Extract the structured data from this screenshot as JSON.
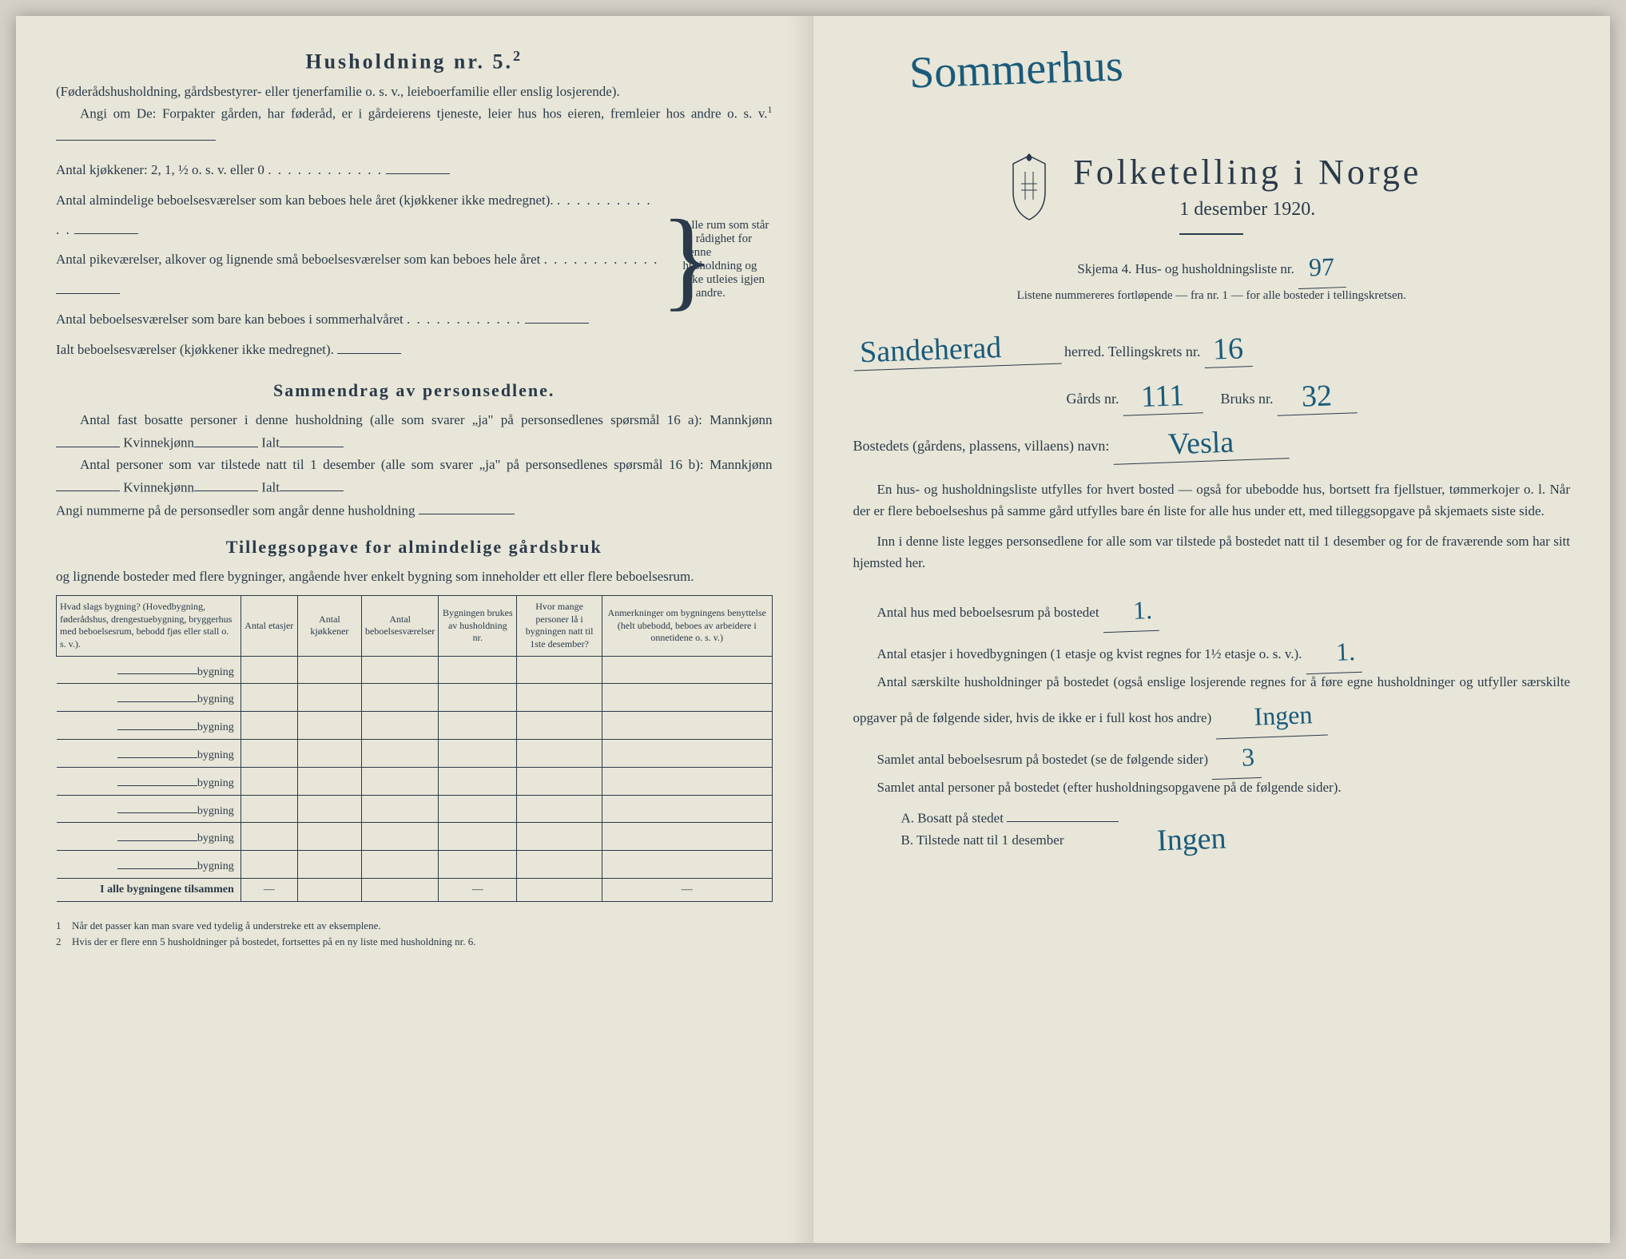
{
  "left": {
    "title": "Husholdning nr. 5.",
    "title_super": "2",
    "intro1": "(Føderådshusholdning, gårdsbestyrer- eller tjenerfamilie o. s. v., leieboerfamilie eller enslig losjerende).",
    "intro2": "Angi om De: Forpakter gården, har føderåd, er i gårdeierens tjeneste, leier hus hos eieren, fremleier hos andre o. s. v.",
    "intro2_super": "1",
    "kitchens_label": "Antal kjøkkener: 2, 1, ½ o. s. v. eller 0",
    "rooms_label1": "Antal almindelige beboelsesværelser som kan beboes hele året (kjøkkener ikke medregnet).",
    "rooms_label2": "Antal pikeværelser, alkover og lignende små beboelsesværelser som kan beboes hele året",
    "rooms_label3": "Antal beboelsesværelser som bare kan beboes i sommerhalvåret",
    "total_label": "Ialt beboelsesværelser (kjøkkener ikke medregnet).",
    "brace_text": "Alle rum som står til rådighet for denne husholdning og ikke utleies igjen til andre.",
    "sammendrag_title": "Sammendrag av personsedlene.",
    "sammendrag1": "Antal fast bosatte personer i denne husholdning (alle som svarer „ja\" på personsedlenes spørsmål 16 a): Mannkjønn",
    "kvinne": "Kvinnekjønn",
    "ialt": "Ialt",
    "sammendrag2": "Antal personer som var tilstede natt til 1 desember (alle som svarer „ja\" på personsedlenes spørsmål 16 b): Mannkjønn",
    "angi": "Angi nummerne på de personsedler som angår denne husholdning",
    "tillegg_title": "Tilleggsopgave for almindelige gårdsbruk",
    "tillegg_sub": "og lignende bosteder med flere bygninger, angående hver enkelt bygning som inneholder ett eller flere beboelsesrum.",
    "table": {
      "col1": "Hvad slags bygning?\n(Hovedbygning, føderådshus, drengestuebygning, bryggerhus med beboelsesrum, bebodd fjøs eller stall o. s. v.).",
      "col2": "Antal etasjer",
      "col3": "Antal kjøkkener",
      "col4": "Antal beboelsesværelser",
      "col5": "Bygningen brukes av husholdning nr.",
      "col6": "Hvor mange personer lå i bygningen natt til 1ste desember?",
      "col7": "Anmerkninger om bygningens benyttelse (helt ubebodd, beboes av arbeidere i onnetidene o. s. v.)",
      "row_label": "bygning",
      "row_count": 8,
      "footer": "I alle bygningene tilsammen"
    },
    "footnote1": "Når det passer kan man svare ved tydelig å understreke ett av eksemplene.",
    "footnote2": "Hvis der er flere enn 5 husholdninger på bostedet, fortsettes på en ny liste med husholdning nr. 6."
  },
  "right": {
    "handwritten_top": "Sommerhus",
    "main_title": "Folketelling i Norge",
    "subtitle": "1 desember 1920.",
    "skjema": "Skjema 4.  Hus- og husholdningsliste nr.",
    "skjema_nr": "97",
    "listene": "Listene nummereres fortløpende — fra nr. 1 — for alle bosteder i tellingskretsen.",
    "herred_hw": "Sandeherad",
    "herred_label": "herred.  Tellingskrets nr.",
    "krets_nr": "16",
    "gards_label": "Gårds nr.",
    "gards_nr": "111",
    "bruks_label": "Bruks nr.",
    "bruks_nr": "32",
    "bosted_label": "Bostedets (gårdens, plassens, villaens) navn:",
    "bosted_hw": "Vesla",
    "para1": "En hus- og husholdningsliste utfylles for hvert bosted — også for ubebodde hus, bortsett fra fjellstuer, tømmerkojer o. l.  Når der er flere beboelseshus på samme gård utfylles bare én liste for alle hus under ett, med tilleggsopgave på skjemaets siste side.",
    "para2": "Inn i denne liste legges personsedlene for alle som var tilstede på bostedet natt til 1 desember og for de fraværende som har sitt hjemsted her.",
    "antal_hus": "Antal hus med beboelsesrum på bostedet",
    "antal_hus_hw": "1.",
    "antal_etasjer": "Antal etasjer i hovedbygningen (1 etasje og kvist regnes for 1½ etasje o. s. v.).",
    "antal_etasjer_hw": "1.",
    "saerskilte": "Antal særskilte husholdninger på bostedet (også enslige losjerende regnes for å føre egne husholdninger og utfyller særskilte opgaver på de følgende sider, hvis de ikke er i full kost hos andre)",
    "saerskilte_hw": "Ingen",
    "samlet_rum": "Samlet antal beboelsesrum på bostedet (se de følgende sider)",
    "samlet_rum_hw": "3",
    "samlet_pers": "Samlet antal personer på bostedet (efter husholdningsopgavene på de følgende sider).",
    "a_label": "A.  Bosatt på stedet",
    "b_label": "B.  Tilstede natt til 1 desember",
    "ab_hw": "Ingen"
  },
  "colors": {
    "paper": "#e8e6d8",
    "ink": "#2a3a4a",
    "handwriting": "#1a5a7a"
  }
}
